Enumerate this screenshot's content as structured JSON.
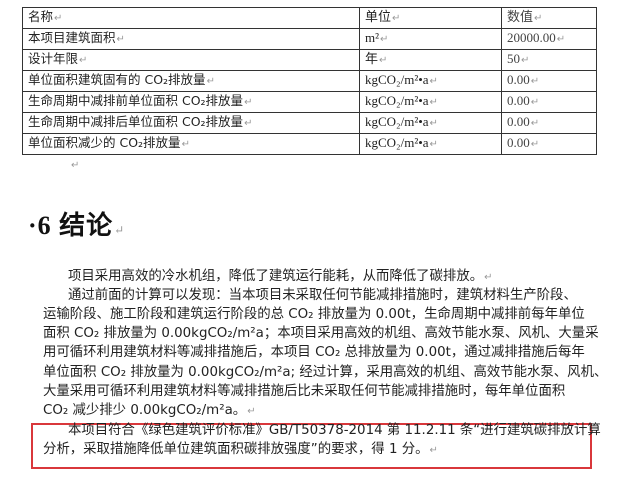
{
  "table": {
    "headers": [
      "名称",
      "单位",
      "数值"
    ],
    "rows": [
      {
        "name": "本项目建筑面积",
        "unit": "m²",
        "value": "20000.00"
      },
      {
        "name": "设计年限",
        "unit": "年",
        "value": "50"
      },
      {
        "name": "单位面积建筑固有的 CO₂排放量",
        "unit": "kgCO₂/m²•a",
        "value": "0.00"
      },
      {
        "name": "生命周期中减排前单位面积 CO₂排放量",
        "unit": "kgCO₂/m²•a",
        "value": "0.00"
      },
      {
        "name": "生命周期中减排后单位面积 CO₂排放量",
        "unit": "kgCO₂/m²•a",
        "value": "0.00"
      },
      {
        "name": "单位面积减少的 CO₂排放量",
        "unit": "kgCO₂/m²•a",
        "value": "0.00"
      }
    ]
  },
  "pilcrow": "↵",
  "section": {
    "title": "·6 结论"
  },
  "lines": [
    "项目采用高效的冷水机组，降低了建筑运行能耗，从而降低了碳排放。",
    "通过前面的计算可以发现：当本项目未采取任何节能减排措施时，建筑材料生产阶段、",
    "运输阶段、施工阶段和建筑运行阶段的总 CO₂ 排放量为 0.00t，生命周期中减排前每年单位",
    "面积 CO₂ 排放量为 0.00kgCO₂/m²a；本项目采用高效的机组、高效节能水泵、风机、大量采",
    "用可循环利用建筑材料等减排措施后，本项目 CO₂ 总排放量为 0.00t，通过减排措施后每年",
    "单位面积 CO₂ 排放量为 0.00kgCO₂/m²a; 经过计算，采用高效的机组、高效节能水泵、风机、",
    "大量采用可循环利用建筑材料等减排措施后比未采取任何节能减排措施时，每年单位面积",
    "CO₂ 减少排少 0.00kgCO₂/m²a。"
  ],
  "highlight_lines": [
    "本项目符合《绿色建筑评价标准》GB/T50378-2014 第 11.2.11 条“进行建筑碳排放计算",
    "分析，采取措施降低单位建筑面积碳排放强度”的要求，得 1 分。"
  ],
  "colors": {
    "highlight_box": "#d9373b",
    "spellcheck_underline": "#6aa84f"
  }
}
